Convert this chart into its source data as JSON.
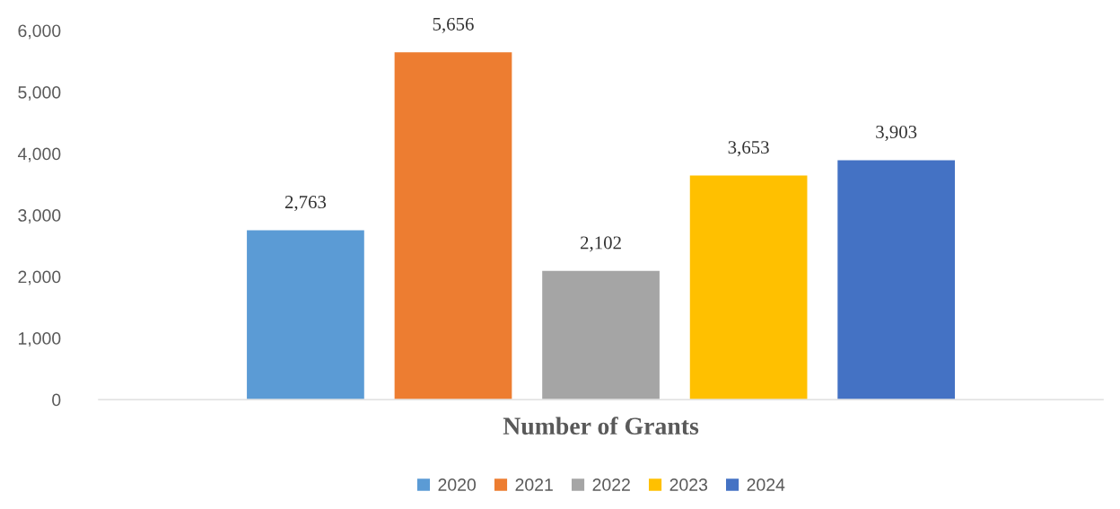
{
  "chart_data": {
    "type": "bar",
    "categories": [
      "Number of Grants"
    ],
    "series": [
      {
        "name": "2020",
        "color": "#5b9bd5",
        "values": [
          2763
        ],
        "value_labels": [
          "2,763"
        ]
      },
      {
        "name": "2021",
        "color": "#ed7d31",
        "values": [
          5656
        ],
        "value_labels": [
          "5,656"
        ]
      },
      {
        "name": "2022",
        "color": "#a5a5a5",
        "values": [
          2102
        ],
        "value_labels": [
          "2,102"
        ]
      },
      {
        "name": "2023",
        "color": "#ffc000",
        "values": [
          3653
        ],
        "value_labels": [
          "3,653"
        ]
      },
      {
        "name": "2024",
        "color": "#4472c4",
        "values": [
          3903
        ],
        "value_labels": [
          "3,903"
        ]
      }
    ],
    "ylim": [
      0,
      6000
    ],
    "yticks": [
      0,
      {
        "value": 1000,
        "label": "1,000"
      },
      {
        "value": 2000,
        "label": "2,000"
      },
      {
        "value": 3000,
        "label": "3,000"
      },
      {
        "value": 4000,
        "label": "4,000"
      },
      {
        "value": 5000,
        "label": "5,000"
      },
      {
        "value": 6000,
        "label": "6,000"
      }
    ],
    "grid": false,
    "legend": "bottom"
  }
}
